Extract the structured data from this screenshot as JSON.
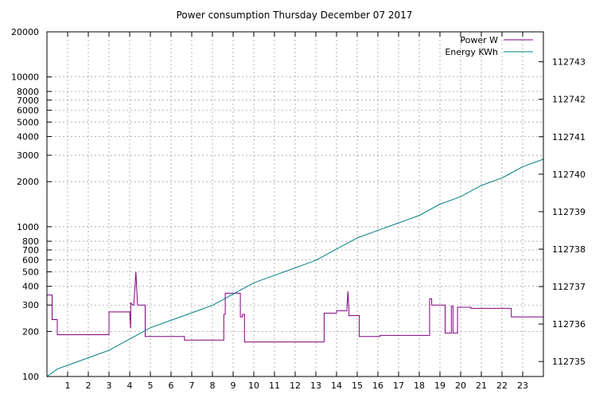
{
  "chart_data": {
    "type": "line",
    "title": "Power consumption Thursday December 07 2017",
    "xlim": [
      0,
      24
    ],
    "ylim_left": [
      100,
      20000
    ],
    "ylim_right": [
      112734.6,
      112743.8
    ],
    "y_left_scale": "log",
    "grid": true,
    "legend_position": "top-right",
    "x_ticks": [
      1,
      2,
      3,
      4,
      5,
      6,
      7,
      8,
      9,
      10,
      11,
      12,
      13,
      14,
      15,
      16,
      17,
      18,
      19,
      20,
      21,
      22,
      23
    ],
    "y_left_ticks": [
      100,
      200,
      300,
      400,
      500,
      600,
      700,
      800,
      1000,
      2000,
      3000,
      4000,
      5000,
      6000,
      7000,
      8000,
      10000,
      20000
    ],
    "y_right_ticks": [
      112735,
      112736,
      112737,
      112738,
      112739,
      112740,
      112741,
      112742,
      112743
    ],
    "series": [
      {
        "name": "Power W",
        "color": "#800080",
        "axis": "left",
        "x": [
          0,
          0.25,
          0.25,
          0.5,
          0.5,
          3.0,
          3.0,
          4.0,
          4.05,
          4.05,
          4.15,
          4.2,
          4.3,
          4.38,
          4.38,
          4.42,
          4.42,
          4.75,
          4.75,
          6.65,
          6.65,
          8.55,
          8.55,
          8.62,
          8.62,
          8.75,
          8.75,
          9.35,
          9.35,
          9.45,
          9.45,
          9.55,
          9.55,
          13.4,
          13.4,
          14.0,
          14.0,
          14.5,
          14.55,
          14.6,
          14.6,
          15.1,
          15.1,
          16.1,
          16.1,
          18.5,
          18.5,
          18.6,
          18.6,
          19.25,
          19.25,
          19.55,
          19.55,
          19.63,
          19.63,
          19.85,
          19.85,
          20.5,
          20.5,
          22.45,
          22.45,
          24
        ],
        "y": [
          350,
          350,
          240,
          240,
          190,
          190,
          270,
          270,
          210,
          310,
          300,
          300,
          500,
          300,
          300,
          300,
          300,
          300,
          185,
          185,
          175,
          175,
          260,
          260,
          360,
          360,
          360,
          360,
          250,
          250,
          260,
          260,
          170,
          170,
          265,
          265,
          275,
          275,
          370,
          275,
          255,
          255,
          185,
          185,
          188,
          188,
          330,
          330,
          300,
          300,
          195,
          195,
          295,
          295,
          195,
          195,
          290,
          290,
          285,
          285,
          250,
          250
        ]
      },
      {
        "name": "Energy KWh",
        "color": "#008080",
        "axis": "right",
        "x": [
          0,
          0.5,
          1,
          2,
          3,
          4,
          5,
          6,
          7,
          8,
          9,
          10,
          11,
          12,
          13,
          14,
          15,
          16,
          17,
          18,
          19,
          20,
          21,
          22,
          23,
          24
        ],
        "y": [
          112734.6,
          112734.8,
          112734.9,
          112735.1,
          112735.3,
          112735.6,
          112735.9,
          112736.1,
          112736.3,
          112736.5,
          112736.8,
          112737.1,
          112737.3,
          112737.5,
          112737.7,
          112738.0,
          112738.3,
          112738.5,
          112738.7,
          112738.9,
          112739.2,
          112739.4,
          112739.7,
          112739.9,
          112740.2,
          112740.4
        ]
      }
    ]
  }
}
